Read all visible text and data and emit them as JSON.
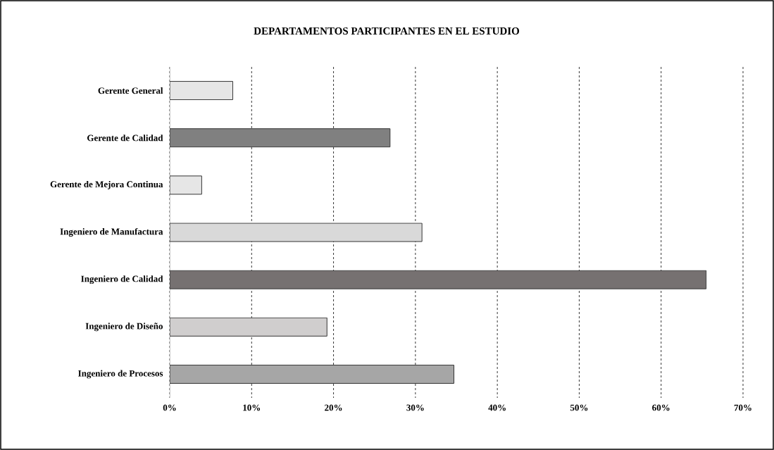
{
  "chart_data": {
    "type": "bar",
    "orientation": "horizontal",
    "title": "DEPARTAMENTOS PARTICIPANTES EN EL ESTUDIO",
    "categories": [
      "Gerente General",
      "Gerente de Calidad",
      "Gerente de Mejora Continua",
      "Ingeniero de Manufactura",
      "Ingeniero de Calidad",
      "Ingeniero de Diseño",
      "Ingeniero de Procesos"
    ],
    "values": [
      7.7,
      26.9,
      3.9,
      30.8,
      65.5,
      19.2,
      34.7
    ],
    "colors": [
      "#e6e6e6",
      "#808080",
      "#e6e6e6",
      "#d9d9d9",
      "#767171",
      "#d0cece",
      "#a6a6a6"
    ],
    "xlim": [
      0,
      70
    ],
    "xticks": [
      {
        "value": 0,
        "label": "0%"
      },
      {
        "value": 10,
        "label": "10%"
      },
      {
        "value": 20,
        "label": "20%"
      },
      {
        "value": 30,
        "label": "30%"
      },
      {
        "value": 40,
        "label": "40%"
      },
      {
        "value": 50,
        "label": "50%"
      },
      {
        "value": 60,
        "label": "60%"
      },
      {
        "value": 70,
        "label": "70%"
      }
    ],
    "grid": "x"
  }
}
